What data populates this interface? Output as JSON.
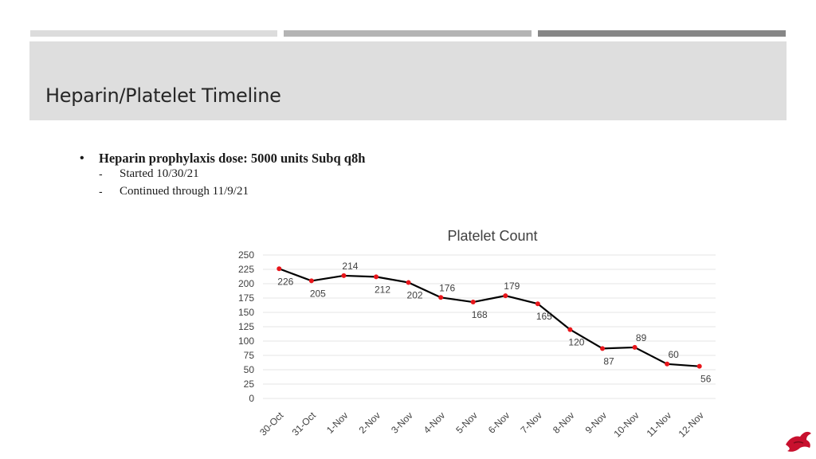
{
  "slide": {
    "title": "Heparin/Platelet Timeline",
    "bullet": "Heparin prophylaxis dose: 5000 units Subq q8h",
    "bullet_glyph": "•",
    "sub_dash": "-",
    "sub_items": [
      "Started 10/30/21",
      "Continued through 11/9/21"
    ]
  },
  "chart_data": {
    "type": "line",
    "title": "Platelet Count",
    "categories": [
      "30-Oct",
      "31-Oct",
      "1-Nov",
      "2-Nov",
      "3-Nov",
      "4-Nov",
      "5-Nov",
      "6-Nov",
      "7-Nov",
      "8-Nov",
      "9-Nov",
      "10-Nov",
      "11-Nov",
      "12-Nov"
    ],
    "series": [
      {
        "values": [
          226,
          205,
          214,
          212,
          202,
          176,
          168,
          179,
          165,
          120,
          87,
          89,
          60,
          56
        ]
      }
    ],
    "ylim": [
      0,
      250
    ],
    "yticks": [
      0,
      25,
      50,
      75,
      100,
      125,
      150,
      175,
      200,
      225,
      250
    ],
    "grid": true,
    "data_labels": true,
    "line_color": "#000000",
    "marker_color": "#e8161b",
    "grid_color": "#e4e4e4"
  },
  "decor": {
    "logo_icon": "red-bird-logo-icon"
  }
}
